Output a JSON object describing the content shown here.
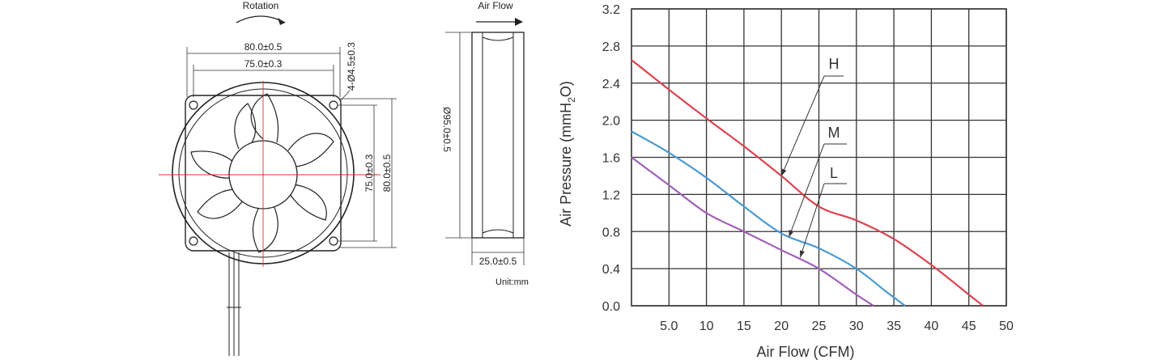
{
  "drawing": {
    "rotation_label": "Rotation",
    "front_view": {
      "dim_overall_width": "80.0±0.5",
      "dim_hole_spacing": "75.0±0.3",
      "dim_hole_spacing_vertical": "75.0±0.3",
      "dim_overall_height": "80.0±0.5",
      "dim_mount_holes": "4-Ø4.5±0.3"
    },
    "side_view": {
      "airflow_label": "Air Flow",
      "dim_diameter": "Ø95.0±0.5",
      "dim_thickness": "25.0±0.5",
      "unit_note": "Unit:mm"
    }
  },
  "chart_data": {
    "type": "line",
    "title": "",
    "xlabel": "Air Flow (CFM)",
    "ylabel": "Air Pressure (mmH2O)",
    "ylabel_main": "Air Pressure (mmH",
    "ylabel_sub": "2",
    "ylabel_end": "O)",
    "xlim": [
      0,
      50
    ],
    "ylim": [
      0,
      3.2
    ],
    "x_ticks": [
      5,
      10,
      15,
      20,
      25,
      30,
      35,
      40,
      45,
      50
    ],
    "x_tick_labels": [
      "5.0",
      "10",
      "15",
      "20",
      "25",
      "30",
      "35",
      "40",
      "45",
      "50"
    ],
    "y_ticks": [
      0,
      0.4,
      0.8,
      1.2,
      1.6,
      2.0,
      2.4,
      2.8,
      3.2
    ],
    "y_tick_labels": [
      "0.0",
      "0.4",
      "0.8",
      "1.2",
      "1.6",
      "2.0",
      "2.4",
      "2.8",
      "3.2"
    ],
    "grid": true,
    "series": [
      {
        "name": "H",
        "color": "#d9444f",
        "x": [
          0,
          5,
          10,
          15,
          20,
          25,
          30,
          35,
          40,
          45,
          46.9
        ],
        "y": [
          2.65,
          2.33,
          2.02,
          1.72,
          1.4,
          1.07,
          0.92,
          0.72,
          0.44,
          0.12,
          0.0
        ]
      },
      {
        "name": "M",
        "color": "#4a9ad0",
        "x": [
          0,
          5,
          10,
          15,
          20,
          25,
          30,
          34,
          36.5
        ],
        "y": [
          1.88,
          1.65,
          1.38,
          1.07,
          0.78,
          0.62,
          0.4,
          0.15,
          0.0
        ]
      },
      {
        "name": "L",
        "color": "#a060b8",
        "x": [
          0,
          5,
          10,
          15,
          20,
          25,
          30,
          32.3
        ],
        "y": [
          1.6,
          1.3,
          1.0,
          0.8,
          0.6,
          0.4,
          0.12,
          0.0
        ]
      }
    ]
  }
}
